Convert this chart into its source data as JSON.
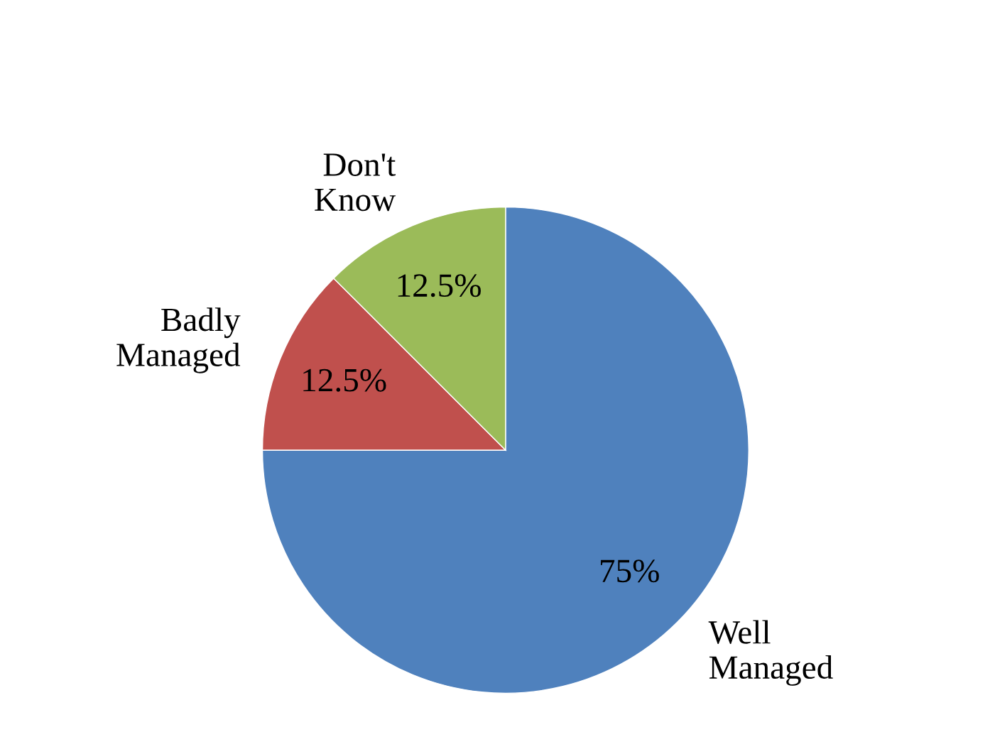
{
  "chart_data": {
    "type": "pie",
    "categories": [
      "Well\nManaged",
      "Badly\nManaged",
      "Don't\nKnow"
    ],
    "values": [
      75,
      12.5,
      12.5
    ],
    "colors": [
      "#4f81bd",
      "#c0504d",
      "#9bbb59"
    ],
    "value_labels": [
      "75%",
      "12.5%",
      "12.5%"
    ]
  }
}
